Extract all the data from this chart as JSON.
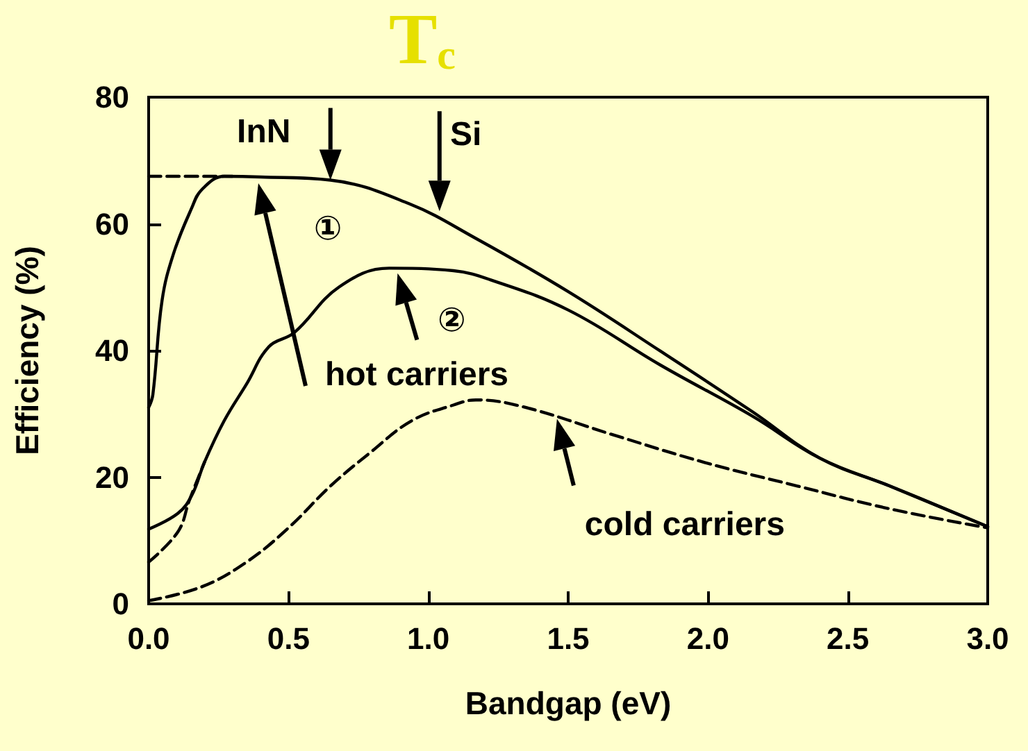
{
  "chart_data": {
    "type": "line",
    "title": "T$_{c}$",
    "xlabel": "Bandgap (eV)",
    "ylabel": "Efficiency (%)",
    "xlim": [
      0,
      3
    ],
    "xticks": [
      {
        "value": 0,
        "label": "0.0"
      },
      {
        "value": 0.5,
        "label": "0.5"
      },
      {
        "value": 1,
        "label": "1.0"
      },
      {
        "value": 1.5,
        "label": "1.5"
      },
      {
        "value": 2,
        "label": "2.0"
      },
      {
        "value": 2.5,
        "label": "2.5"
      },
      {
        "value": 3,
        "label": "3.0"
      }
    ],
    "ylim": [
      0,
      80
    ],
    "yticks": [
      0,
      20,
      40,
      60,
      80
    ],
    "grid": false,
    "marker": "none",
    "line_style": "solid",
    "series": [
      {
        "color": "#000000",
        "x": [
          0,
          0.015,
          0.048,
          0.089,
          0.154,
          0.19,
          0.27,
          0.4,
          0.65,
          0.93,
          1.17,
          1.5,
          1.83,
          2.16,
          2.4,
          2.65,
          3.0
        ],
        "values": [
          31,
          33,
          47.9,
          55.3,
          62.5,
          65.4,
          67.5,
          67.4,
          66.9,
          63.2,
          57.7,
          49.3,
          39.9,
          30.3,
          23,
          18.6,
          12.2
        ]
      },
      {
        "color": "#000000",
        "x": [
          0,
          0.105,
          0.155,
          0.2,
          0.27,
          0.35,
          0.43,
          0.52,
          0.68,
          0.86,
          1.09,
          1.22,
          1.5,
          1.83,
          2.16,
          2.4,
          2.65,
          3.0
        ],
        "values": [
          11.8,
          14.3,
          17.2,
          22.4,
          28.9,
          34.7,
          40.6,
          42.8,
          50,
          53,
          52.6,
          51.2,
          46.4,
          37.7,
          29.6,
          23,
          18.6,
          12.2
        ]
      },
      {
        "color": "#000000",
        "line_style": "dashed",
        "x": [
          0,
          0.19,
          0.35,
          0.5,
          0.65,
          0.79,
          0.94,
          1.09,
          1.17,
          1.34,
          1.66,
          1.99,
          2.32,
          2.65,
          3.0
        ],
        "values": [
          0.5,
          2.7,
          6.6,
          12,
          18.6,
          23.8,
          28.9,
          31.4,
          32.2,
          31.1,
          26.7,
          22.3,
          18.6,
          15,
          12
        ]
      },
      {
        "color": "#000000",
        "line_style": "dashed",
        "x": [
          0,
          0.3
        ],
        "values": [
          67.5,
          67.5
        ]
      },
      {
        "color": "#000000",
        "line_style": "dashed",
        "x": [
          0,
          0.105,
          0.146,
          0.2
        ],
        "values": [
          6.6,
          11.4,
          16.4,
          22.4
        ]
      }
    ],
    "annotations": [
      {
        "text": "InN",
        "x": 0.65,
        "y": 66.9
      },
      {
        "text": "Si",
        "x": 1.04,
        "y": 62
      },
      "①",
      {
        "text": "②",
        "x": 0.89,
        "y": 52.2
      },
      "hot carriers",
      {
        "text": "cold carriers",
        "x": 1.46,
        "y": 29.2
      }
    ]
  }
}
